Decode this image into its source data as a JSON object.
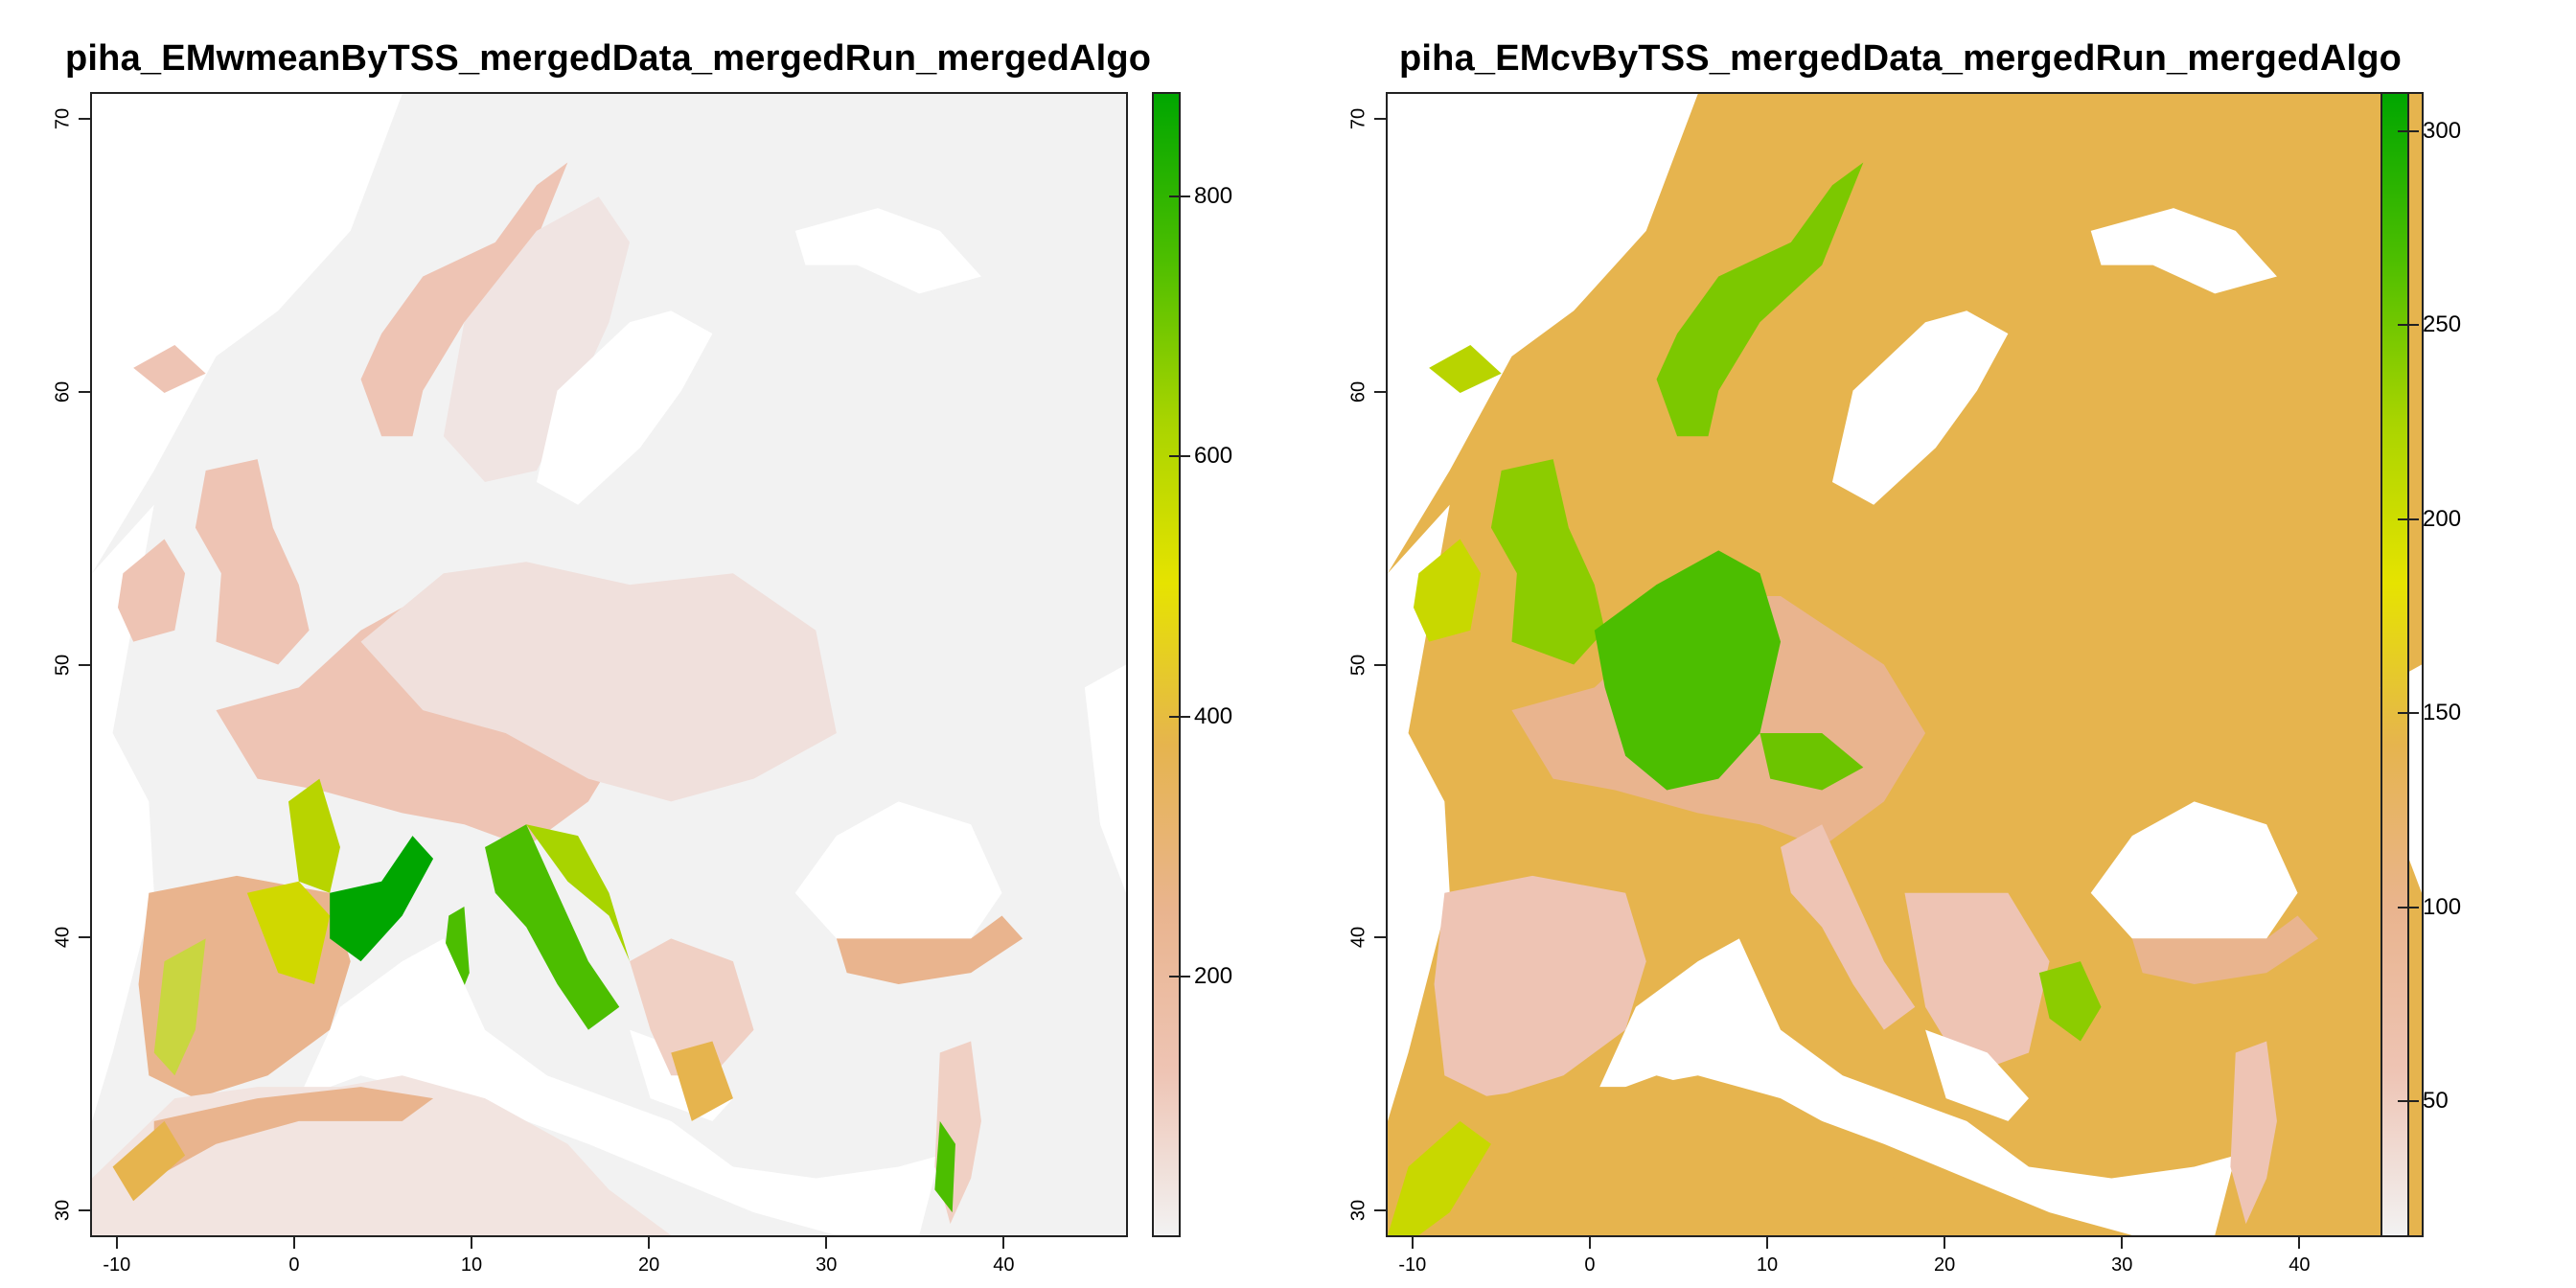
{
  "maps": [
    {
      "title": "piha_EMwmeanByTSS_mergedData_mergedRun_mergedAlgo",
      "legend": {
        "min": 0,
        "max": 880,
        "ticks": [
          "200",
          "400",
          "600",
          "800"
        ],
        "tick_values": [
          200,
          400,
          600,
          800
        ],
        "colors": [
          "#f2f2f2",
          "#eec4b4",
          "#e9b48e",
          "#e6b44e",
          "#e6e300",
          "#a8d400",
          "#4cbe00",
          "#00a600"
        ]
      },
      "x_ticks": [
        "-10",
        "0",
        "10",
        "20",
        "30",
        "40"
      ],
      "x_tick_values": [
        -10,
        0,
        10,
        20,
        30,
        40
      ],
      "y_ticks": [
        "30",
        "40",
        "50",
        "60",
        "70"
      ],
      "y_tick_values": [
        30,
        40,
        50,
        60,
        70
      ],
      "extent": {
        "lon": [
          -11.5,
          47
        ],
        "lat": [
          29,
          71
        ]
      }
    },
    {
      "title": "piha_EMcvByTSS_mergedData_mergedRun_mergedAlgo",
      "legend": {
        "min": 15,
        "max": 310,
        "ticks": [
          "50",
          "100",
          "150",
          "200",
          "250",
          "300"
        ],
        "tick_values": [
          50,
          100,
          150,
          200,
          250,
          300
        ],
        "colors": [
          "#f2f2f2",
          "#eec4b4",
          "#e9b48e",
          "#e6b44e",
          "#e6e300",
          "#a8d400",
          "#4cbe00",
          "#00a600"
        ]
      },
      "x_ticks": [
        "-10",
        "0",
        "10",
        "20",
        "30",
        "40"
      ],
      "x_tick_values": [
        -10,
        0,
        10,
        20,
        30,
        40
      ],
      "y_ticks": [
        "30",
        "40",
        "50",
        "60",
        "70"
      ],
      "y_tick_values": [
        30,
        40,
        50,
        60,
        70
      ],
      "extent": {
        "lon": [
          -11.5,
          47
        ],
        "lat": [
          29,
          71
        ]
      }
    }
  ]
}
